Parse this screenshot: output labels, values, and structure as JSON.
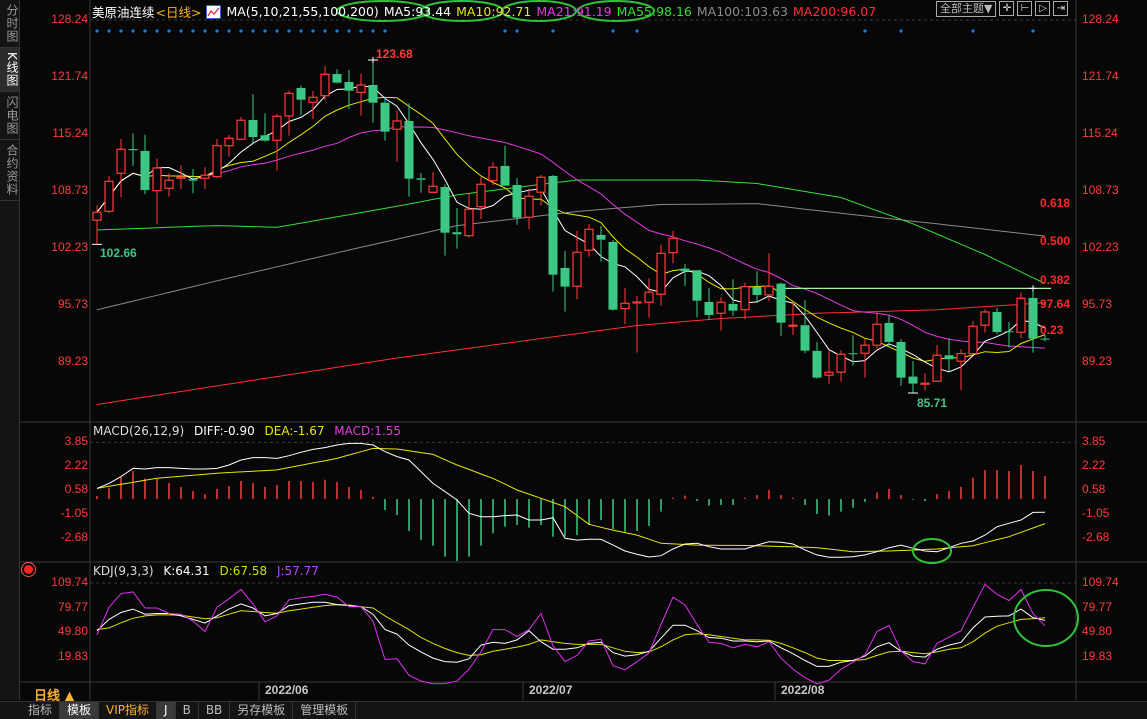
{
  "sidebar": {
    "tabs": [
      {
        "label": "分时图",
        "active": false
      },
      {
        "label": "K线图",
        "active": true
      },
      {
        "label": "闪电图",
        "active": false
      },
      {
        "label": "合约资料",
        "active": false
      }
    ]
  },
  "header": {
    "symbol": "美原油连续",
    "period_tag": "<日线>",
    "ma_params": "MA(5,10,21,55,100,200)",
    "ma5": "MA5:93.44",
    "ma10": "MA10:92.71",
    "ma21": "MA21:91.19",
    "ma55": "MA55:98.16",
    "ma100": "MA100:103.63",
    "ma200": "MA200:96.07",
    "theme_button": "全部主题▼",
    "icon_buttons": [
      "crosshair-icon",
      "zoom-left-icon",
      "play-right-icon",
      "move-right-icon"
    ]
  },
  "colors": {
    "up": "#ff3b3b",
    "down": "#3cc884",
    "ma5": "#ffffff",
    "ma10": "#e8e800",
    "ma21": "#e23ae2",
    "ma55": "#35dd35",
    "ma100": "#8a8a8a",
    "ma200": "#ff3030",
    "fib_line": "#a8f0a0",
    "annotation": "#2fc23a",
    "dots": "#1a7fd8"
  },
  "chart_data": {
    "type": "candlestick",
    "candles_ohlc": [
      [
        105.41,
        107.15,
        102.66,
        106.32
      ],
      [
        106.43,
        110.46,
        106.2,
        109.85
      ],
      [
        110.76,
        114.67,
        108.03,
        113.5
      ],
      [
        113.53,
        115.32,
        111.6,
        113.39
      ],
      [
        113.31,
        115.16,
        108.37,
        108.86
      ],
      [
        108.78,
        112.43,
        104.95,
        111.37
      ],
      [
        109.05,
        110.76,
        108.1,
        109.97
      ],
      [
        110.19,
        111.68,
        108.97,
        110.34
      ],
      [
        110.08,
        111.25,
        108.48,
        109.92
      ],
      [
        110.19,
        111.45,
        108.97,
        110.54
      ],
      [
        110.38,
        114.67,
        110.19,
        113.91
      ],
      [
        113.91,
        115.13,
        112.66,
        114.75
      ],
      [
        114.64,
        117.18,
        114.64,
        116.81
      ],
      [
        116.84,
        119.77,
        114.18,
        114.9
      ],
      [
        115.1,
        117.6,
        114.37,
        114.48
      ],
      [
        114.53,
        117.52,
        111.06,
        117.26
      ],
      [
        117.3,
        120.18,
        115.05,
        119.88
      ],
      [
        120.49,
        120.75,
        117.38,
        119.15
      ],
      [
        118.86,
        120.15,
        116.95,
        119.43
      ],
      [
        119.61,
        123.0,
        119.09,
        122.05
      ],
      [
        122.08,
        122.62,
        121.02,
        121.09
      ],
      [
        121.17,
        122.54,
        118.09,
        120.18
      ],
      [
        119.99,
        122.12,
        117.33,
        120.83
      ],
      [
        120.83,
        123.68,
        116.53,
        118.81
      ],
      [
        118.81,
        119.5,
        114.48,
        115.51
      ],
      [
        115.78,
        117.87,
        112.09,
        116.73
      ],
      [
        116.73,
        118.74,
        108.1,
        110.15
      ],
      [
        110.19,
        110.8,
        108.55,
        110.03
      ],
      [
        108.6,
        110.91,
        108.55,
        109.28
      ],
      [
        109.2,
        109.51,
        101.37,
        103.99
      ],
      [
        104.04,
        106.81,
        102.17,
        103.81
      ],
      [
        103.65,
        108.4,
        103.42,
        106.66
      ],
      [
        106.96,
        110.31,
        105.52,
        109.51
      ],
      [
        109.92,
        112.05,
        109.43,
        111.45
      ],
      [
        111.6,
        113.88,
        109.32,
        109.35
      ],
      [
        109.43,
        110.23,
        104.9,
        105.7
      ],
      [
        105.75,
        109.05,
        104.38,
        108.14
      ],
      [
        108.6,
        110.57,
        107.07,
        110.31
      ],
      [
        110.46,
        110.57,
        97.27,
        99.2
      ],
      [
        99.97,
        101.91,
        94.99,
        97.84
      ],
      [
        97.88,
        104.19,
        96.4,
        101.76
      ],
      [
        101.99,
        104.98,
        101.26,
        104.38
      ],
      [
        103.73,
        104.76,
        100.69,
        103.19
      ],
      [
        102.93,
        103.16,
        95.1,
        95.21
      ],
      [
        95.33,
        97.69,
        93.55,
        95.94
      ],
      [
        96.01,
        96.78,
        90.31,
        96.09
      ],
      [
        96.06,
        98.79,
        94.3,
        97.2
      ],
      [
        96.97,
        102.62,
        95.67,
        101.64
      ],
      [
        101.71,
        104.19,
        100.5,
        103.35
      ],
      [
        99.89,
        100.42,
        97.92,
        99.59
      ],
      [
        99.71,
        99.71,
        94.35,
        96.24
      ],
      [
        96.09,
        97.69,
        94.04,
        94.61
      ],
      [
        94.8,
        96.63,
        92.82,
        96.06
      ],
      [
        95.86,
        98.68,
        94.5,
        95.1
      ],
      [
        95.21,
        98.29,
        94.12,
        97.84
      ],
      [
        97.8,
        99.59,
        95.98,
        96.89
      ],
      [
        96.89,
        101.64,
        96.21,
        97.88
      ],
      [
        98.18,
        98.29,
        92.22,
        93.73
      ],
      [
        93.36,
        96.09,
        92.33,
        93.44
      ],
      [
        93.44,
        96.29,
        90.24,
        90.54
      ],
      [
        90.51,
        91.53,
        87.35,
        87.46
      ],
      [
        87.74,
        90.51,
        86.78,
        88.08
      ],
      [
        88.08,
        90.59,
        87.01,
        90.13
      ],
      [
        90.24,
        92.3,
        88.83,
        90.16
      ],
      [
        90.24,
        91.87,
        87.46,
        91.16
      ],
      [
        91.16,
        94.92,
        90.81,
        93.55
      ],
      [
        93.7,
        94.53,
        90.99,
        91.53
      ],
      [
        91.53,
        91.87,
        86.52,
        87.46
      ],
      [
        87.58,
        89.33,
        85.71,
        86.78
      ],
      [
        86.74,
        87.96,
        86.0,
        86.82
      ],
      [
        87.05,
        91.16,
        87.05,
        90.01
      ],
      [
        90.01,
        91.95,
        88.23,
        89.56
      ],
      [
        89.33,
        90.7,
        86.06,
        90.2
      ],
      [
        90.2,
        93.93,
        90.2,
        93.32
      ],
      [
        93.44,
        95.26,
        92.59,
        94.95
      ],
      [
        94.95,
        95.41,
        92.41,
        92.67
      ],
      [
        92.75,
        93.81,
        90.88,
        92.67
      ],
      [
        92.64,
        97.15,
        91.95,
        96.51
      ],
      [
        96.55,
        97.54,
        90.31,
        91.91
      ],
      [
        91.91,
        92.36,
        91.61,
        91.84
      ]
    ],
    "ma55_points": [
      [
        0,
        104.3
      ],
      [
        10,
        104.8
      ],
      [
        15,
        104.6
      ],
      [
        25,
        107.0
      ],
      [
        30,
        108.3
      ],
      [
        40,
        110.0
      ],
      [
        50,
        110.0
      ],
      [
        55,
        109.6
      ],
      [
        62,
        108.0
      ],
      [
        68,
        105.0
      ],
      [
        74,
        101.5
      ],
      [
        79,
        98.2
      ]
    ],
    "ma100_points": [
      [
        0,
        95.2
      ],
      [
        10,
        98.5
      ],
      [
        20,
        101.7
      ],
      [
        30,
        104.8
      ],
      [
        40,
        106.4
      ],
      [
        47,
        107.2
      ],
      [
        55,
        107.3
      ],
      [
        62,
        106.2
      ],
      [
        70,
        105.0
      ],
      [
        79,
        103.6
      ]
    ],
    "ma200_points": [
      [
        0,
        84.4
      ],
      [
        25,
        89.7
      ],
      [
        45,
        93.4
      ],
      [
        52,
        94.2
      ],
      [
        60,
        94.8
      ],
      [
        70,
        95.2
      ],
      [
        79,
        96.0
      ]
    ],
    "price_ticks": [
      "128.24",
      "121.74",
      "115.24",
      "108.73",
      "102.23",
      "95.73",
      "89.23"
    ],
    "price_range": [
      128.24,
      85.0
    ],
    "high_label": "123.68",
    "low_label_left": "102.66",
    "low_label_right": "85.71",
    "fib_level_price": 97.64,
    "fib_labels": [
      {
        "text": "0.618",
        "price": 107.25
      },
      {
        "text": "0.500",
        "price": 102.92
      },
      {
        "text": "0.382",
        "price": 98.47
      },
      {
        "text": "97.64",
        "price": 95.73
      },
      {
        "text": "0.23",
        "price": 92.77
      }
    ],
    "signal_dots_candles": [
      0,
      1,
      2,
      3,
      4,
      5,
      6,
      7,
      8,
      9,
      10,
      11,
      12,
      13,
      14,
      15,
      16,
      17,
      18,
      19,
      20,
      21,
      22,
      23,
      24,
      34,
      35,
      38,
      43,
      45,
      64,
      67,
      73,
      78
    ],
    "x_labels": [
      {
        "label": "2022/06",
        "candle": 14
      },
      {
        "label": "2022/07",
        "candle": 36
      },
      {
        "label": "2022/08",
        "candle": 57
      }
    ],
    "macd": {
      "legend": "MACD(26,12,9)",
      "diff_label": "DIFF:-0.90",
      "dea_label": "DEA:-1.67",
      "macd_label": "MACD:1.55",
      "ticks": [
        "3.85",
        "2.22",
        "0.58",
        "-1.05",
        "-2.68"
      ],
      "diff": [
        0.72,
        1.06,
        1.52,
        2.08,
        2.04,
        2.13,
        2.13,
        2.08,
        2.04,
        2.04,
        2.08,
        2.31,
        2.65,
        2.81,
        2.81,
        2.76,
        2.94,
        3.17,
        3.37,
        3.49,
        3.67,
        3.78,
        3.78,
        3.67,
        3.22,
        2.88,
        2.65,
        1.86,
        1.06,
        0.5,
        -0.07,
        -0.97,
        -1.2,
        -1.2,
        -1.13,
        -1.09,
        -1.43,
        -1.43,
        -1.27,
        -2.67,
        -2.79,
        -2.74,
        -2.74,
        -3.13,
        -3.53,
        -3.76,
        -3.94,
        -3.85,
        -3.4,
        -3.06,
        -3.01,
        -3.24,
        -3.4,
        -3.4,
        -3.4,
        -3.13,
        -2.9,
        -2.94,
        -3.06,
        -3.46,
        -3.8,
        -3.96,
        -3.96,
        -3.92,
        -3.8,
        -3.58,
        -3.31,
        -3.13,
        -3.35,
        -3.53,
        -3.58,
        -3.31,
        -3.01,
        -2.85,
        -2.45,
        -1.88,
        -1.65,
        -1.43,
        -0.91,
        -0.9
      ],
      "dea": [
        0.72,
        0.86,
        1.0,
        1.13,
        1.27,
        1.41,
        1.48,
        1.55,
        1.61,
        1.68,
        1.75,
        1.8,
        1.84,
        1.89,
        1.93,
        1.98,
        2.14,
        2.29,
        2.45,
        2.6,
        2.76,
        2.99,
        3.21,
        3.44,
        3.42,
        3.4,
        3.28,
        3.15,
        3.03,
        2.67,
        2.31,
        2.01,
        1.7,
        1.4,
        1.01,
        0.61,
        0.33,
        0.05,
        -0.24,
        -0.52,
        -1.12,
        -1.72,
        -1.92,
        -2.11,
        -2.28,
        -2.45,
        -2.73,
        -3.01,
        -3.05,
        -3.09,
        -3.13,
        -3.14,
        -3.15,
        -3.15,
        -3.16,
        -3.17,
        -3.2,
        -3.23,
        -3.25,
        -3.28,
        -3.31,
        -3.4,
        -3.49,
        -3.58,
        -3.56,
        -3.55,
        -3.53,
        -3.5,
        -3.47,
        -3.43,
        -3.4,
        -3.32,
        -3.25,
        -3.17,
        -2.97,
        -2.76,
        -2.56,
        -2.26,
        -1.97,
        -1.67
      ],
      "hist": [
        0.2,
        0.73,
        1.49,
        1.9,
        1.4,
        1.36,
        1.09,
        0.82,
        0.54,
        0.32,
        0.68,
        0.88,
        1.22,
        1.09,
        0.82,
        0.95,
        1.22,
        1.22,
        1.15,
        1.31,
        1.15,
        0.82,
        0.61,
        0.14,
        -0.75,
        -1.09,
        -2.17,
        -2.78,
        -3.17,
        -3.92,
        -4.21,
        -3.92,
        -3.17,
        -2.33,
        -1.88,
        -1.77,
        -1.95,
        -1.77,
        -2.56,
        -2.54,
        -2.45,
        -1.77,
        -1.43,
        -2.04,
        -2.22,
        -2.17,
        -1.83,
        -0.86,
        0.09,
        0.23,
        -0.14,
        -0.45,
        -0.41,
        -0.41,
        0.09,
        0.27,
        0.61,
        0.27,
        0.09,
        -0.41,
        -1.02,
        -1.13,
        -0.86,
        -0.59,
        -0.2,
        0.45,
        0.68,
        0.27,
        -0.05,
        -0.14,
        0.34,
        0.54,
        0.82,
        1.45,
        1.97,
        1.97,
        1.9,
        2.31,
        1.9,
        1.55
      ]
    },
    "kdj": {
      "legend": "KDJ(9,3,3)",
      "k_label": "K:64.31",
      "d_label": "D:67.58",
      "j_label": "J:57.77",
      "ticks": [
        "109.74",
        "79.77",
        "49.80",
        "19.83"
      ],
      "k": [
        51.88,
        65.62,
        73.94,
        78.11,
        71.86,
        72.69,
        72.69,
        69.78,
        65.62,
        61.04,
        69.78,
        78.11,
        84.35,
        79.35,
        69.78,
        72.69,
        82.27,
        84.35,
        86.43,
        86.43,
        83.52,
        82.27,
        81.02,
        71.86,
        53.13,
        47.72,
        34.39,
        26.07,
        18.57,
        14.41,
        13.58,
        17.74,
        34.39,
        37.72,
        36.48,
        40.64,
        51.88,
        38.56,
        29.4,
        29.4,
        31.06,
        36.48,
        37.72,
        25.24,
        21.07,
        22.74,
        26.9,
        42.72,
        58.54,
        58.54,
        51.88,
        43.55,
        42.72,
        39.39,
        39.39,
        38.56,
        39.39,
        31.06,
        23.99,
        15.66,
        8.58,
        8.58,
        13.58,
        15.66,
        21.07,
        32.31,
        37.31,
        26.9,
        21.07,
        19.82,
        29.4,
        34.39,
        37.72,
        55.21,
        68.53,
        69.36,
        69.78,
        78.11,
        67.7,
        64.31
      ],
      "d": [
        53.13,
        55.21,
        61.45,
        66.87,
        69.78,
        71.03,
        71.03,
        70.61,
        68.53,
        66.45,
        67.7,
        71.86,
        76.02,
        75.19,
        73.94,
        73.11,
        76.02,
        78.11,
        80.19,
        82.27,
        83.52,
        83.1,
        81.02,
        79.35,
        69.78,
        61.45,
        53.13,
        43.55,
        36.48,
        30.23,
        25.24,
        21.9,
        22.74,
        26.9,
        29.4,
        31.9,
        35.23,
        40.64,
        38.56,
        36.48,
        35.23,
        35.23,
        35.23,
        31.06,
        26.9,
        25.24,
        26.07,
        32.31,
        40.64,
        46.88,
        48.13,
        46.88,
        44.8,
        42.72,
        40.64,
        40.64,
        40.22,
        36.48,
        31.06,
        25.24,
        18.57,
        15.66,
        15.66,
        15.66,
        16.91,
        21.9,
        26.07,
        26.9,
        25.24,
        23.99,
        26.07,
        29.4,
        31.06,
        38.56,
        48.96,
        57.29,
        61.45,
        65.62,
        66.45,
        67.58
      ],
      "j": [
        46.88,
        80.19,
        96.84,
        98.92,
        79.35,
        79.35,
        72.69,
        71.86,
        63.53,
        51.05,
        80.19,
        90.59,
        101.83,
        84.35,
        62.7,
        69.78,
        89.35,
        91.84,
        93.51,
        96.01,
        92.68,
        81.02,
        81.02,
        63.53,
        16.91,
        17.74,
        -2.24,
        -9.32,
        -12.65,
        -12.23,
        -9.32,
        5.25,
        26.07,
        53.13,
        53.13,
        44.8,
        53.13,
        72.69,
        33.56,
        14.41,
        21.9,
        39.39,
        41.47,
        9.42,
        4.42,
        14.41,
        24.82,
        59.37,
        92.68,
        83.1,
        59.37,
        37.72,
        36.48,
        31.06,
        35.23,
        32.31,
        38.56,
        18.57,
        5.25,
        -5.15,
        -12.65,
        -8.07,
        5.25,
        13.58,
        22.74,
        51.05,
        58.12,
        27.32,
        14.41,
        11.5,
        36.48,
        43.97,
        51.88,
        80.19,
        108.08,
        96.01,
        88.51,
        101.83,
        72.69,
        57.77
      ]
    }
  },
  "bottom": {
    "period_label": "日线",
    "period_arrow": "▲",
    "tabs": [
      {
        "label": "指标",
        "active": false
      },
      {
        "label": "模板",
        "active": true
      },
      {
        "label": "VIP指标",
        "active": false
      },
      {
        "label": "J",
        "active": false
      },
      {
        "label": "B",
        "active": false
      },
      {
        "label": "BB",
        "active": false
      },
      {
        "label": "另存模板",
        "active": false
      },
      {
        "label": "管理模板",
        "active": false
      }
    ]
  }
}
